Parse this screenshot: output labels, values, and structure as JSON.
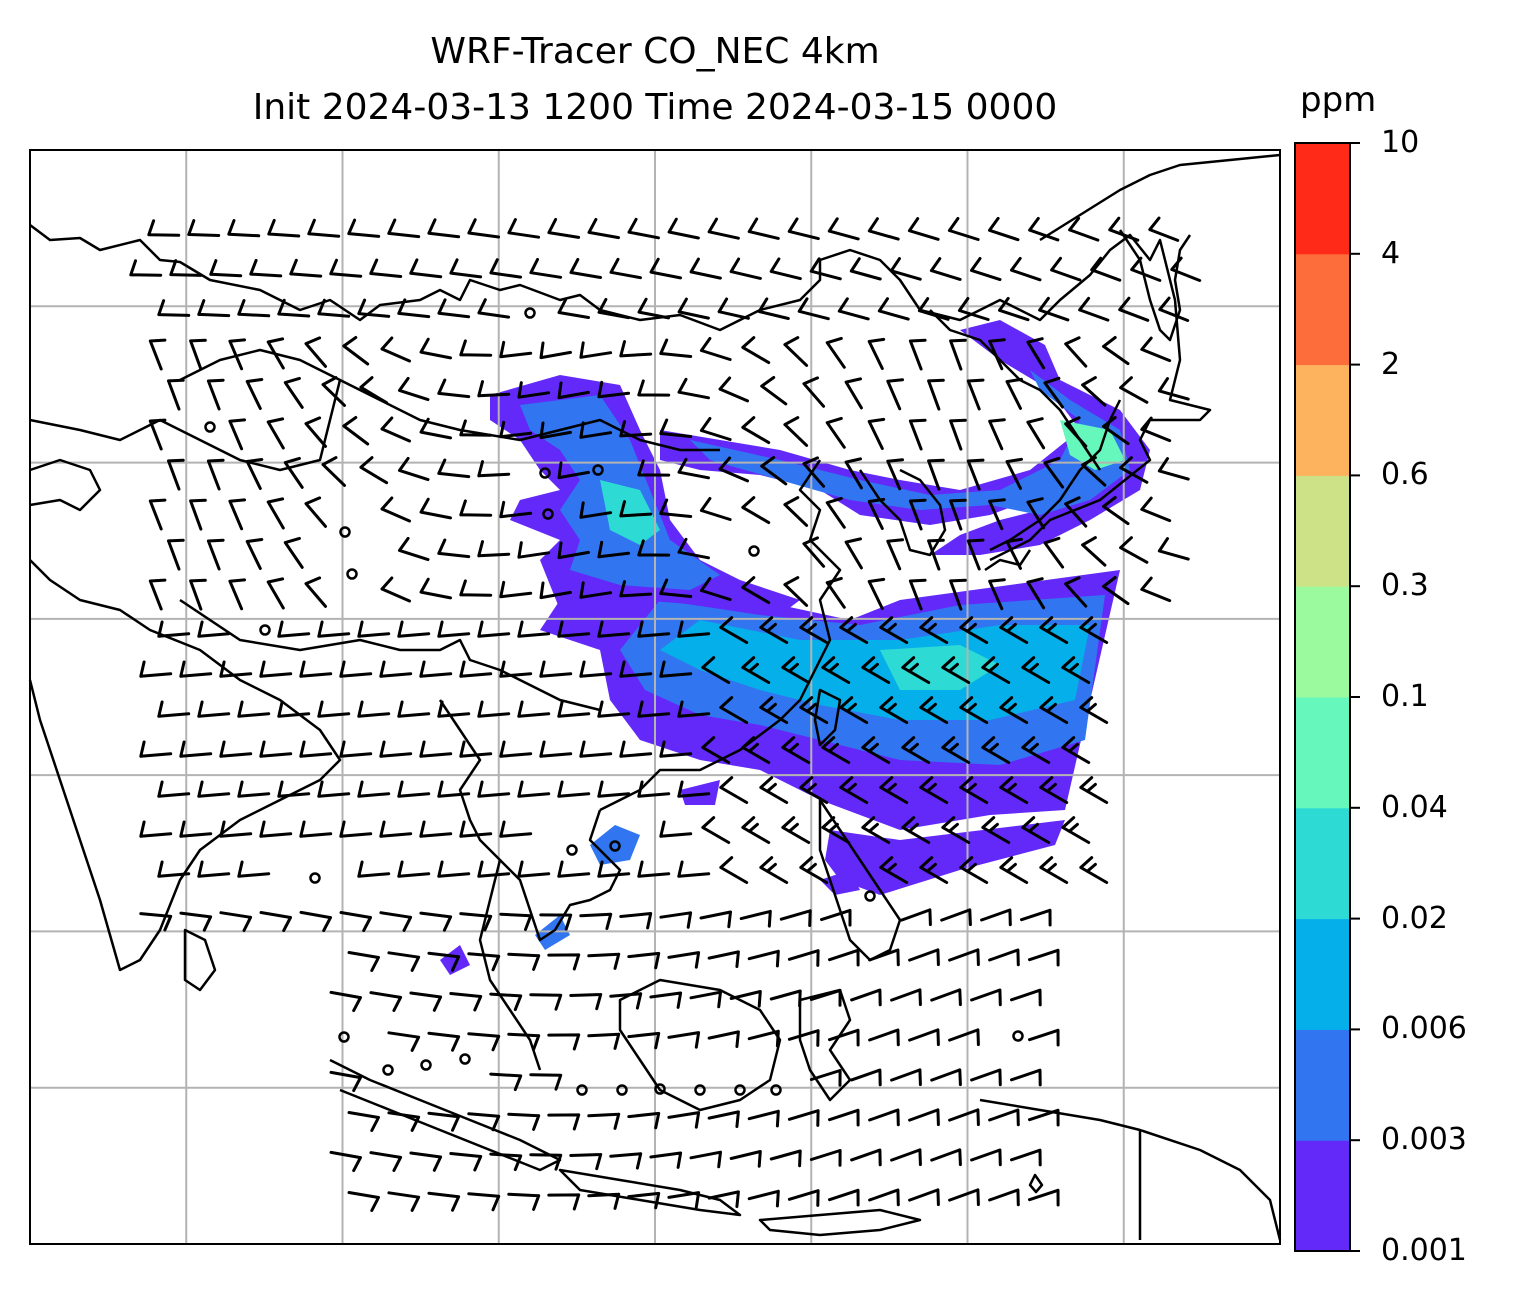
{
  "title": {
    "line1": "WRF-Tracer CO_NEC 4km",
    "line2": "Init 2024-03-13 1200 Time 2024-03-15 0000"
  },
  "colorbar": {
    "unit": "ppm",
    "levels": [
      "0.001",
      "0.003",
      "0.006",
      "0.02",
      "0.04",
      "0.1",
      "0.3",
      "0.6",
      "2",
      "4",
      "10"
    ],
    "colors": [
      "#6329f9",
      "#3176f0",
      "#05b0ea",
      "#2edbd4",
      "#66f7bd",
      "#9cfa9e",
      "#cde286",
      "#fdb25e",
      "#fd6d3b",
      "#ff2a17"
    ]
  },
  "plume_colors": {
    "low": "#6329f9",
    "mid": "#3176f0",
    "high": "#05b0ea",
    "peak": "#2edbd4",
    "max": "#66f7bd"
  },
  "grid": {
    "color": "#b3b3b3",
    "columns": 8,
    "rows": 7
  }
}
